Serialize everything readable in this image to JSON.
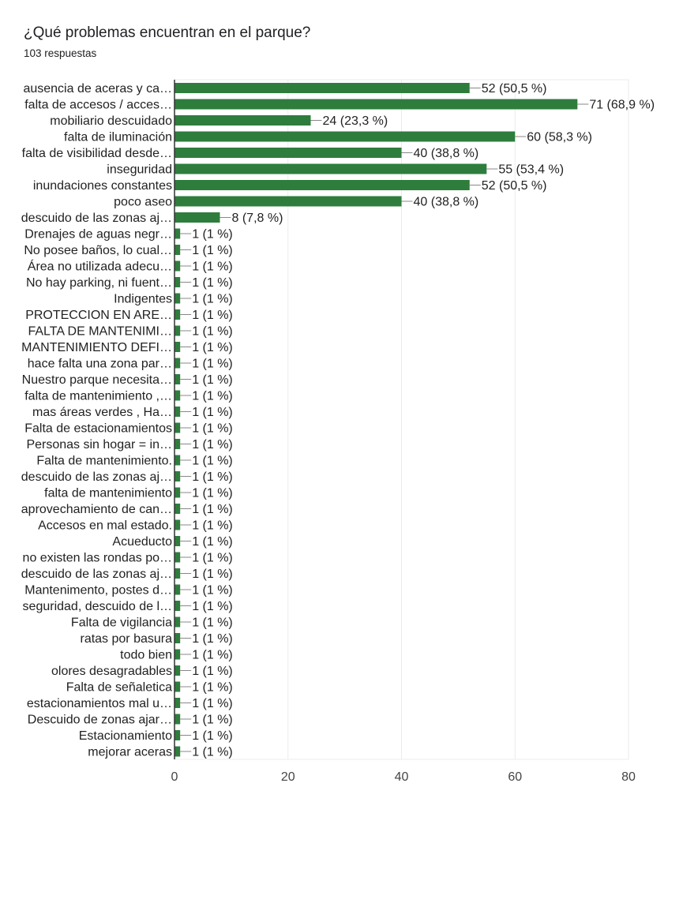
{
  "header": {
    "title": "¿Qué problemas encuentran en el parque?",
    "subtitle": "103 respuestas"
  },
  "chart_data": {
    "type": "bar",
    "orientation": "horizontal",
    "title": "¿Qué problemas encuentran en el parque?",
    "bar_color": "#2e7d3c",
    "grid": true,
    "xlim": [
      0,
      80
    ],
    "xticks": [
      "0",
      "20",
      "40",
      "60",
      "80"
    ],
    "categories": [
      "ausencia de aceras y ca…",
      "falta de accesos / acces…",
      "mobiliario descuidado",
      "falta de iluminación",
      "falta de visibilidad desde…",
      "inseguridad",
      "inundaciones constantes",
      "poco aseo",
      "descuido de las zonas aj…",
      "Drenajes de aguas negr…",
      "No posee baños, lo cual…",
      "Área no utilizada adecu…",
      "No hay parking, ni fuent…",
      "Indigentes",
      "PROTECCION EN ARE…",
      "FALTA DE MANTENIMI…",
      "MANTENIMIENTO DEFI…",
      "hace falta una zona par…",
      "Nuestro parque necesita…",
      "falta de mantenimiento ,…",
      "mas áreas verdes , Ha…",
      "Falta de estacionamientos",
      "Personas sin hogar = in…",
      "Falta de mantenimiento.",
      "descuido de las zonas aj…",
      "falta de mantenimiento",
      "aprovechamiento de can…",
      "Accesos en mal estado.",
      "Acueducto",
      "no existen las rondas po…",
      "descuido de las zonas aj…",
      "Mantenimento, postes d…",
      "seguridad, descuido de l…",
      "Falta de vigilancia",
      "ratas por basura",
      "todo bien",
      "olores desagradables",
      "Falta de señaletica",
      "estacionamientos mal u…",
      "Descuido de zonas ajar…",
      "Estacionamiento",
      "mejorar aceras"
    ],
    "values": [
      52,
      71,
      24,
      60,
      40,
      55,
      52,
      40,
      8,
      1,
      1,
      1,
      1,
      1,
      1,
      1,
      1,
      1,
      1,
      1,
      1,
      1,
      1,
      1,
      1,
      1,
      1,
      1,
      1,
      1,
      1,
      1,
      1,
      1,
      1,
      1,
      1,
      1,
      1,
      1,
      1,
      1
    ],
    "labels": [
      "52 (50,5 %)",
      "71 (68,9 %)",
      "24 (23,3 %)",
      "60 (58,3 %)",
      "40 (38,8 %)",
      "55 (53,4 %)",
      "52 (50,5 %)",
      "40 (38,8 %)",
      "8 (7,8 %)",
      "1 (1 %)",
      "1 (1 %)",
      "1 (1 %)",
      "1 (1 %)",
      "1 (1 %)",
      "1 (1 %)",
      "1 (1 %)",
      "1 (1 %)",
      "1 (1 %)",
      "1 (1 %)",
      "1 (1 %)",
      "1 (1 %)",
      "1 (1 %)",
      "1 (1 %)",
      "1 (1 %)",
      "1 (1 %)",
      "1 (1 %)",
      "1 (1 %)",
      "1 (1 %)",
      "1 (1 %)",
      "1 (1 %)",
      "1 (1 %)",
      "1 (1 %)",
      "1 (1 %)",
      "1 (1 %)",
      "1 (1 %)",
      "1 (1 %)",
      "1 (1 %)",
      "1 (1 %)",
      "1 (1 %)",
      "1 (1 %)",
      "1 (1 %)",
      "1 (1 %)"
    ]
  }
}
